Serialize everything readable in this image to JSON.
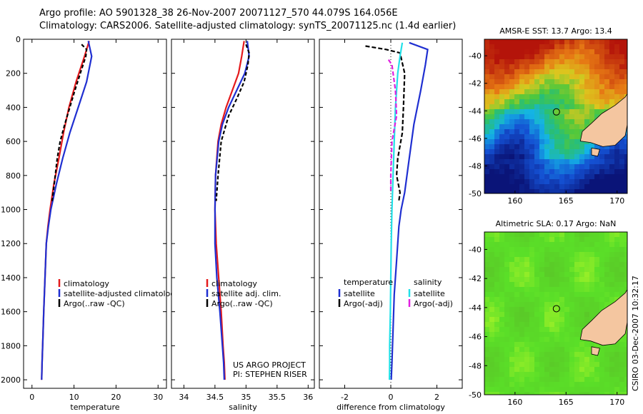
{
  "header": {
    "line1": "Argo profile: AO 5901328_38 26-Nov-2007 20071127_570 44.079S 164.056E",
    "line2": "Climatology: CARS2006. Satellite-adjusted climatology: synTS_20071125.nc (1.4d earlier)"
  },
  "side_label": "CSIRO 03-Dec-2007 10:32:17",
  "colors": {
    "climatology": "#e41a1c",
    "satellite": "#1f2fd1",
    "argo": "#000000",
    "cyan": "#22e0e8",
    "magenta": "#e020e0",
    "land": "#f4c6a0"
  },
  "chart_data": [
    {
      "type": "line",
      "title": "",
      "xlabel": "temperature",
      "ylabel": "",
      "xlim": [
        -2,
        32
      ],
      "ylim": [
        2050,
        0
      ],
      "xticks": [
        "0",
        "10",
        "20",
        "30"
      ],
      "yticks": [
        "0",
        "200",
        "400",
        "600",
        "800",
        "1000",
        "1200",
        "1400",
        "1600",
        "1800",
        "2000"
      ],
      "legend": [
        "climatology",
        "satellite-adjusted climatology",
        "Argo(..raw -QC)"
      ],
      "legend_position": "bottom-center",
      "series": [
        {
          "name": "climatology",
          "color": "#e41a1c",
          "dash": "",
          "x": [
            13.6,
            12.5,
            10.5,
            8.8,
            7.5,
            6.4,
            5.2,
            4.3,
            3.8,
            3.4,
            3.1,
            2.8,
            2.6,
            2.4,
            2.3
          ],
          "y": [
            10,
            100,
            250,
            400,
            550,
            700,
            850,
            1000,
            1100,
            1200,
            1400,
            1600,
            1750,
            1900,
            2000
          ]
        },
        {
          "name": "satellite-adjusted climatology",
          "color": "#1f2fd1",
          "dash": "",
          "x": [
            13.4,
            14.2,
            13.0,
            11.0,
            9.0,
            7.3,
            5.8,
            4.5,
            3.9,
            3.4,
            3.1,
            2.8,
            2.6,
            2.4,
            2.3
          ],
          "y": [
            10,
            100,
            250,
            400,
            550,
            700,
            850,
            1000,
            1100,
            1200,
            1400,
            1600,
            1750,
            1900,
            2000
          ]
        },
        {
          "name": "Argo(..raw -QC)",
          "color": "#000000",
          "dash": "5,3",
          "x": [
            11.8,
            13.0,
            12.8,
            11.5,
            10.2,
            9.0,
            7.8,
            6.7,
            6.0,
            5.3,
            4.8
          ],
          "y": [
            30,
            60,
            100,
            200,
            300,
            400,
            500,
            600,
            700,
            850,
            950
          ]
        }
      ]
    },
    {
      "type": "line",
      "title": "",
      "xlabel": "salinity",
      "xlim": [
        33.8,
        36.1
      ],
      "ylim": [
        2050,
        0
      ],
      "xticks": [
        "34",
        "34.5",
        "35",
        "35.5",
        "36"
      ],
      "legend": [
        "climatology",
        "satellite adj. clim.",
        "Argo(..raw -QC)"
      ],
      "legend_position": "bottom-center",
      "annotation": [
        "US ARGO PROJECT",
        "PI: STEPHEN RISER"
      ],
      "series": [
        {
          "name": "climatology",
          "color": "#e41a1c",
          "dash": "",
          "x": [
            34.97,
            34.93,
            34.88,
            34.78,
            34.68,
            34.6,
            34.55,
            34.51,
            34.5,
            34.52,
            34.56,
            34.6,
            34.63,
            34.65,
            34.66
          ],
          "y": [
            10,
            100,
            200,
            300,
            400,
            500,
            600,
            800,
            1000,
            1200,
            1400,
            1600,
            1800,
            1900,
            2000
          ]
        },
        {
          "name": "satellite adj. clim.",
          "color": "#1f2fd1",
          "dash": "",
          "x": [
            35.02,
            35.05,
            34.98,
            34.85,
            34.72,
            34.62,
            34.56,
            34.51,
            34.5,
            34.5,
            34.53,
            34.58,
            34.62,
            34.64,
            34.65
          ],
          "y": [
            10,
            100,
            200,
            300,
            400,
            500,
            600,
            800,
            1000,
            1200,
            1400,
            1600,
            1800,
            1900,
            2000
          ]
        },
        {
          "name": "Argo(..raw -QC)",
          "color": "#000000",
          "dash": "5,3",
          "x": [
            35.0,
            35.05,
            35.03,
            34.97,
            34.85,
            34.72,
            34.6,
            34.55,
            34.52
          ],
          "y": [
            30,
            80,
            150,
            250,
            350,
            450,
            600,
            800,
            950
          ]
        }
      ]
    },
    {
      "type": "line",
      "title": "",
      "xlabel": "difference from climatology",
      "xlim": [
        -3.1,
        3.1
      ],
      "ylim": [
        2050,
        0
      ],
      "xticks": [
        "-2",
        "0",
        "2"
      ],
      "legend_left_title": "temperature",
      "legend_right_title": "salinity",
      "legend_left": [
        "satellite",
        "Argo(-adj)"
      ],
      "legend_right": [
        "satellite",
        "Argo(-adj)"
      ],
      "legend_position": "bottom-center",
      "series": [
        {
          "name": "satellite",
          "group": "temperature",
          "color": "#1f2fd1",
          "dash": "",
          "x": [
            0.8,
            1.6,
            1.5,
            1.3,
            1.0,
            0.8,
            0.6,
            0.45,
            0.35,
            0.3,
            0.25,
            0.15,
            0.1,
            0.05,
            0.02
          ],
          "y": [
            20,
            60,
            150,
            300,
            500,
            700,
            900,
            1000,
            1100,
            1200,
            1300,
            1500,
            1700,
            1900,
            2000
          ]
        },
        {
          "name": "Argo(-adj)",
          "group": "temperature",
          "color": "#000000",
          "dash": "6,3",
          "x": [
            -1.1,
            -0.2,
            0.4,
            0.6,
            0.55,
            0.5,
            0.3,
            0.25,
            0.4,
            0.35
          ],
          "y": [
            40,
            60,
            80,
            200,
            400,
            550,
            700,
            800,
            900,
            950
          ]
        },
        {
          "name": "satellite",
          "group": "salinity",
          "color": "#22e0e8",
          "dash": "",
          "x": [
            0.5,
            0.4,
            0.3,
            0.2,
            0.15,
            0.1,
            0.05,
            0.02,
            0.0,
            -0.02,
            -0.05,
            -0.05,
            -0.06
          ],
          "y": [
            20,
            100,
            200,
            400,
            600,
            800,
            1000,
            1200,
            1400,
            1600,
            1800,
            1900,
            2000
          ]
        },
        {
          "name": "Argo(-adj)",
          "group": "salinity",
          "color": "#e020e0",
          "dash": "6,3",
          "x": [
            -0.1,
            0.05,
            0.1,
            0.2,
            0.25,
            0.05,
            0.0,
            0.0
          ],
          "y": [
            120,
            150,
            200,
            300,
            450,
            600,
            800,
            900
          ]
        }
      ]
    },
    {
      "type": "heatmap",
      "title": "AMSR-E SST: 13.7 Argo: 13.4",
      "xlim": [
        157,
        171
      ],
      "ylim": [
        -50,
        -38.8
      ],
      "xticks": [
        "160",
        "165",
        "170"
      ],
      "yticks": [
        "-40",
        "-42",
        "-44",
        "-46",
        "-48",
        "-50"
      ],
      "marker": {
        "lon": 164.056,
        "lat": -44.079
      }
    },
    {
      "type": "heatmap",
      "title": "Altimetric SLA: 0.17 Argo: NaN",
      "xlim": [
        157,
        171
      ],
      "ylim": [
        -50,
        -38.8
      ],
      "xticks": [
        "160",
        "165",
        "170"
      ],
      "yticks": [
        "-40",
        "-42",
        "-44",
        "-46",
        "-48",
        "-50"
      ],
      "marker": {
        "lon": 164.056,
        "lat": -44.079
      }
    }
  ]
}
